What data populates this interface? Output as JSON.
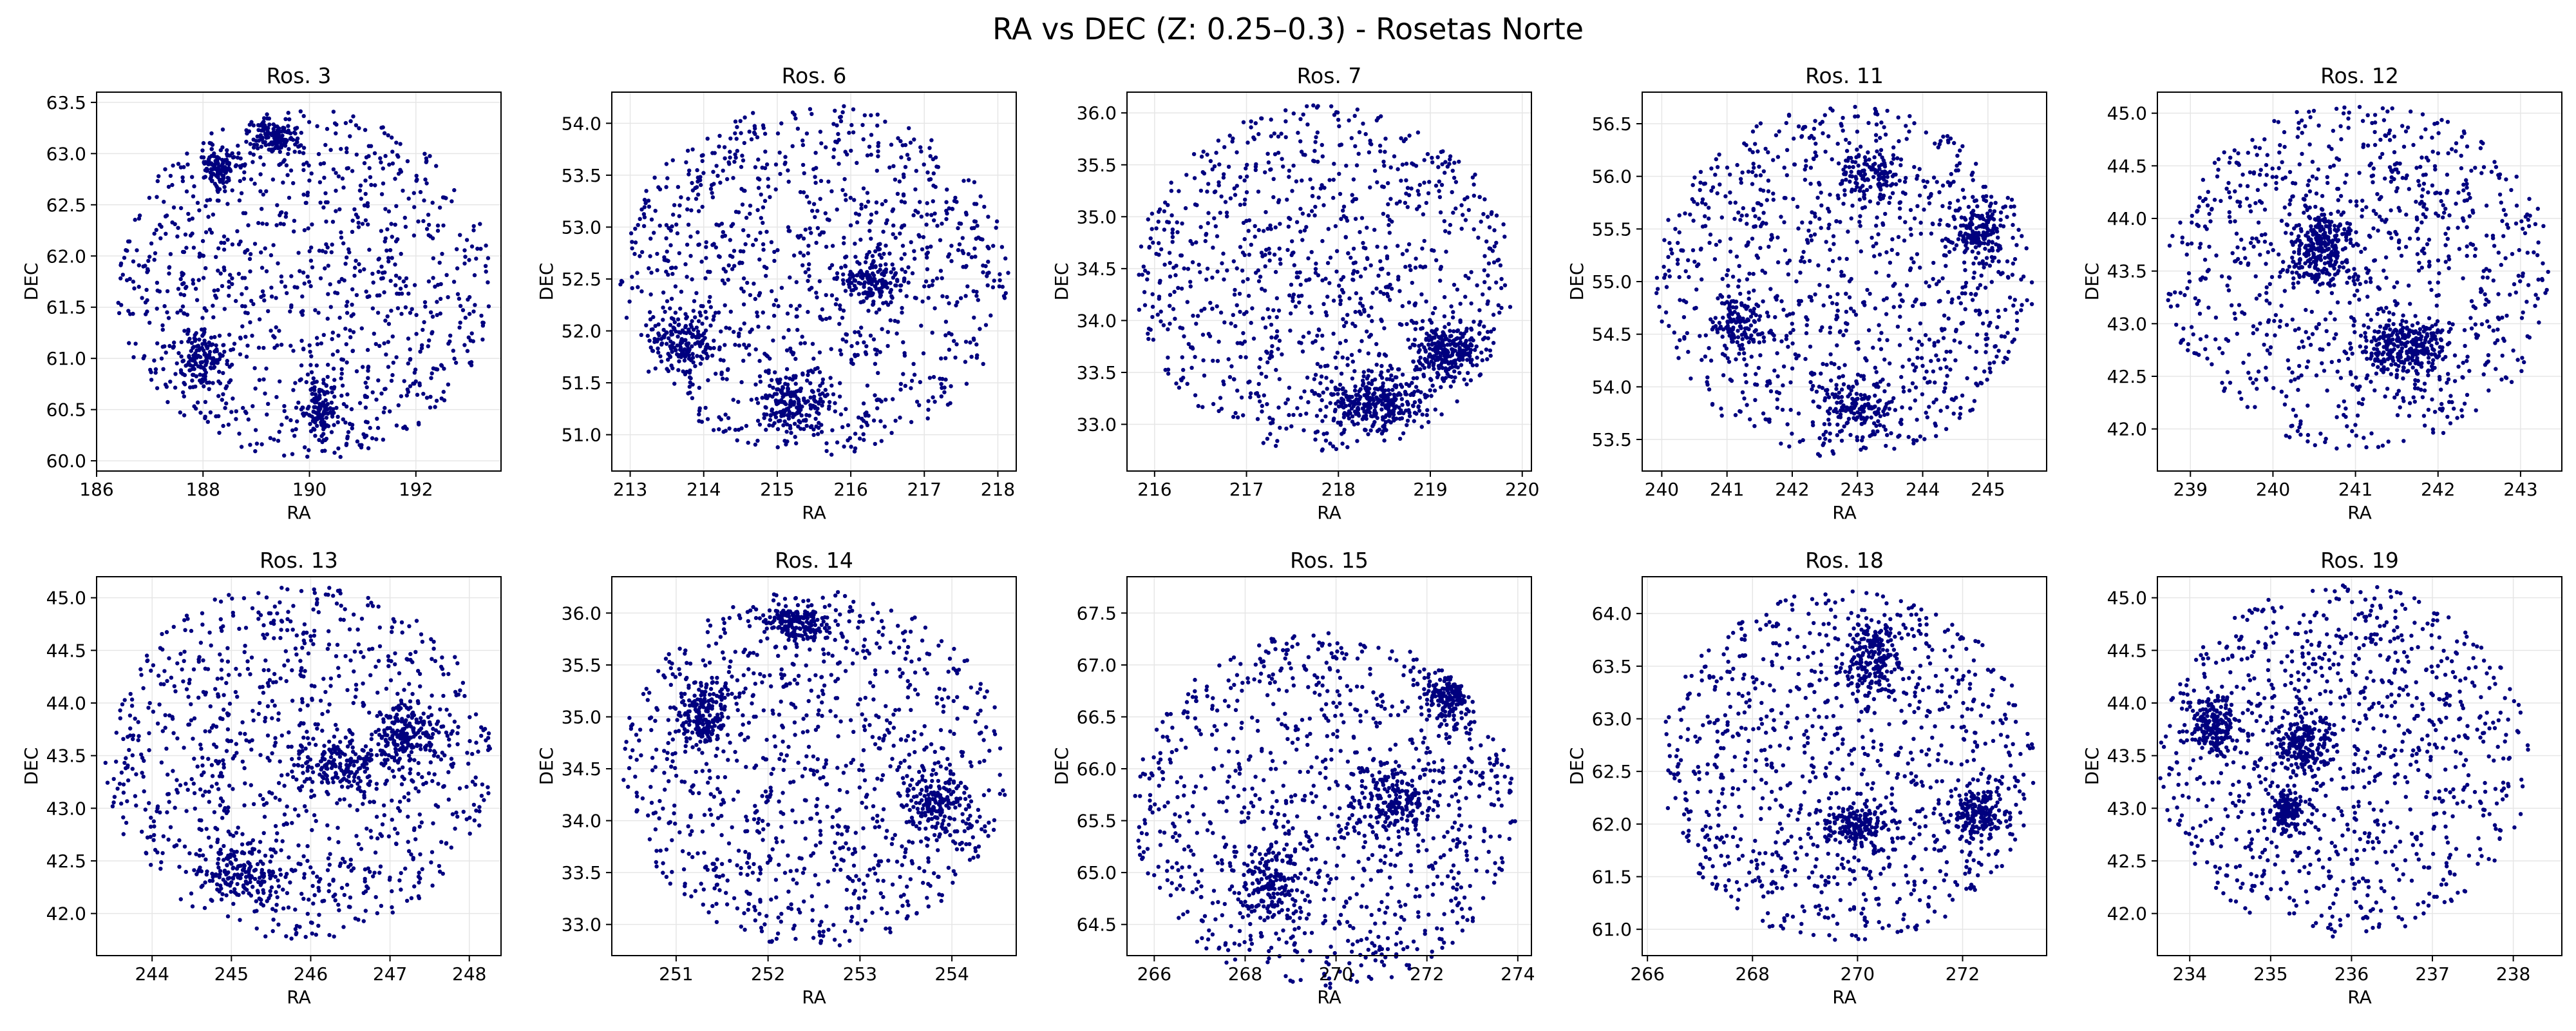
{
  "figure": {
    "suptitle": "RA vs DEC (Z: 0.25–0.3) - Rosetas Norte",
    "marker_color": "#00007f",
    "grid_color": "#e6e6e6"
  },
  "chart_data": [
    {
      "type": "scatter",
      "title": "Ros. 3",
      "xlabel": "RA",
      "ylabel": "DEC",
      "xlim": [
        186.0,
        193.6
      ],
      "ylim": [
        59.9,
        63.6
      ],
      "xticks": [
        186,
        188,
        190,
        192
      ],
      "yticks": [
        60.0,
        60.5,
        61.0,
        61.5,
        62.0,
        62.5,
        63.0,
        63.5
      ],
      "center": [
        189.9,
        61.72
      ],
      "radius": [
        3.55,
        1.72
      ],
      "clusters": [
        [
          189.3,
          63.15,
          0.5,
          0.2
        ],
        [
          188.3,
          62.85,
          0.4,
          0.2
        ],
        [
          190.2,
          60.5,
          0.4,
          0.3
        ],
        [
          188.0,
          61.0,
          0.5,
          0.3
        ]
      ],
      "grid": true,
      "legend": "none"
    },
    {
      "type": "scatter",
      "title": "Ros. 6",
      "xlabel": "RA",
      "ylabel": "DEC",
      "xlim": [
        212.75,
        218.25
      ],
      "ylim": [
        50.65,
        54.3
      ],
      "xticks": [
        213,
        214,
        215,
        216,
        217,
        218
      ],
      "yticks": [
        51.0,
        51.5,
        52.0,
        52.5,
        53.0,
        53.5,
        54.0
      ],
      "center": [
        215.5,
        52.5
      ],
      "radius": [
        2.65,
        1.7
      ],
      "clusters": [
        [
          213.7,
          51.9,
          0.5,
          0.3
        ],
        [
          215.2,
          51.3,
          0.5,
          0.3
        ],
        [
          216.3,
          52.5,
          0.5,
          0.3
        ]
      ],
      "grid": true,
      "legend": "none"
    },
    {
      "type": "scatter",
      "title": "Ros. 7",
      "xlabel": "RA",
      "ylabel": "DEC",
      "xlim": [
        215.7,
        220.1
      ],
      "ylim": [
        32.55,
        36.2
      ],
      "xticks": [
        216,
        217,
        218,
        219,
        220
      ],
      "yticks": [
        33.0,
        33.5,
        34.0,
        34.5,
        35.0,
        35.5,
        36.0
      ],
      "center": [
        217.85,
        34.4
      ],
      "radius": [
        2.05,
        1.68
      ],
      "clusters": [
        [
          218.4,
          33.2,
          0.6,
          0.3
        ],
        [
          219.2,
          33.7,
          0.4,
          0.3
        ]
      ],
      "grid": true,
      "legend": "none"
    },
    {
      "type": "scatter",
      "title": "Ros. 11",
      "xlabel": "RA",
      "ylabel": "DEC",
      "xlim": [
        239.7,
        245.9
      ],
      "ylim": [
        53.2,
        56.8
      ],
      "xticks": [
        240,
        241,
        242,
        243,
        244,
        245
      ],
      "yticks": [
        53.5,
        54.0,
        54.5,
        55.0,
        55.5,
        56.0,
        56.5
      ],
      "center": [
        242.8,
        55.0
      ],
      "radius": [
        2.9,
        1.68
      ],
      "clusters": [
        [
          241.2,
          54.6,
          0.5,
          0.3
        ],
        [
          243.0,
          53.8,
          0.6,
          0.3
        ],
        [
          243.2,
          56.0,
          0.6,
          0.3
        ],
        [
          244.8,
          55.5,
          0.5,
          0.3
        ]
      ],
      "grid": true,
      "legend": "none"
    },
    {
      "type": "scatter",
      "title": "Ros. 12",
      "xlabel": "RA",
      "ylabel": "DEC",
      "xlim": [
        238.6,
        243.5
      ],
      "ylim": [
        41.6,
        45.2
      ],
      "xticks": [
        239,
        240,
        241,
        242,
        243
      ],
      "yticks": [
        42.0,
        42.5,
        43.0,
        43.5,
        44.0,
        44.5,
        45.0
      ],
      "center": [
        241.05,
        43.45
      ],
      "radius": [
        2.35,
        1.65
      ],
      "clusters": [
        [
          240.6,
          43.7,
          0.4,
          0.4
        ],
        [
          241.6,
          42.8,
          0.6,
          0.3
        ]
      ],
      "grid": true,
      "legend": "none"
    },
    {
      "type": "scatter",
      "title": "Ros. 13",
      "xlabel": "RA",
      "ylabel": "DEC",
      "xlim": [
        243.3,
        248.4
      ],
      "ylim": [
        41.6,
        45.2
      ],
      "xticks": [
        244,
        245,
        246,
        247,
        248
      ],
      "yticks": [
        42.0,
        42.5,
        43.0,
        43.5,
        44.0,
        44.5,
        45.0
      ],
      "center": [
        245.85,
        43.45
      ],
      "radius": [
        2.45,
        1.7
      ],
      "clusters": [
        [
          245.2,
          42.4,
          0.6,
          0.3
        ],
        [
          246.4,
          43.4,
          0.7,
          0.3
        ],
        [
          247.2,
          43.7,
          0.4,
          0.3
        ]
      ],
      "grid": true,
      "legend": "none"
    },
    {
      "type": "scatter",
      "title": "Ros. 14",
      "xlabel": "RA",
      "ylabel": "DEC",
      "xlim": [
        250.3,
        254.7
      ],
      "ylim": [
        32.7,
        36.35
      ],
      "xticks": [
        251,
        252,
        253,
        254
      ],
      "yticks": [
        33.0,
        33.5,
        34.0,
        34.5,
        35.0,
        35.5,
        36.0
      ],
      "center": [
        252.5,
        34.5
      ],
      "radius": [
        2.1,
        1.72
      ],
      "clusters": [
        [
          251.3,
          35.0,
          0.3,
          0.4
        ],
        [
          253.8,
          34.2,
          0.4,
          0.4
        ],
        [
          252.3,
          35.9,
          0.4,
          0.2
        ]
      ],
      "grid": true,
      "legend": "none"
    },
    {
      "type": "scatter",
      "title": "Ros. 15",
      "xlabel": "RA",
      "ylabel": "DEC",
      "xlim": [
        265.4,
        274.3
      ],
      "ylim": [
        64.2,
        67.85
      ],
      "xticks": [
        266,
        268,
        270,
        272,
        274
      ],
      "yticks": [
        64.5,
        65.0,
        65.5,
        66.0,
        66.5,
        67.0,
        67.5
      ],
      "center": [
        269.75,
        65.6
      ],
      "radius": [
        4.2,
        1.72
      ],
      "clusters": [
        [
          271.2,
          65.7,
          0.8,
          0.4
        ],
        [
          268.5,
          64.9,
          0.8,
          0.4
        ],
        [
          272.5,
          66.7,
          0.6,
          0.3
        ]
      ],
      "grid": true,
      "legend": "none"
    },
    {
      "type": "scatter",
      "title": "Ros. 18",
      "xlabel": "RA",
      "ylabel": "DEC",
      "xlim": [
        265.9,
        273.6
      ],
      "ylim": [
        60.75,
        64.35
      ],
      "xticks": [
        266,
        268,
        270,
        272
      ],
      "yticks": [
        61.0,
        61.5,
        62.0,
        62.5,
        63.0,
        63.5,
        64.0
      ],
      "center": [
        269.8,
        62.55
      ],
      "radius": [
        3.6,
        1.68
      ],
      "clusters": [
        [
          270.0,
          62.0,
          0.6,
          0.2
        ],
        [
          272.3,
          62.1,
          0.5,
          0.3
        ],
        [
          270.3,
          63.6,
          0.5,
          0.4
        ]
      ],
      "grid": true,
      "legend": "none"
    },
    {
      "type": "scatter",
      "title": "Ros. 19",
      "xlabel": "RA",
      "ylabel": "DEC",
      "xlim": [
        233.6,
        238.6
      ],
      "ylim": [
        41.6,
        45.2
      ],
      "xticks": [
        234,
        235,
        236,
        237,
        238
      ],
      "yticks": [
        42.0,
        42.5,
        43.0,
        43.5,
        44.0,
        44.5,
        45.0
      ],
      "center": [
        235.9,
        43.45
      ],
      "radius": [
        2.3,
        1.68
      ],
      "clusters": [
        [
          235.4,
          43.6,
          0.4,
          0.3
        ],
        [
          234.3,
          43.8,
          0.3,
          0.3
        ],
        [
          235.2,
          43.0,
          0.2,
          0.2
        ]
      ],
      "grid": true,
      "legend": "none"
    }
  ]
}
